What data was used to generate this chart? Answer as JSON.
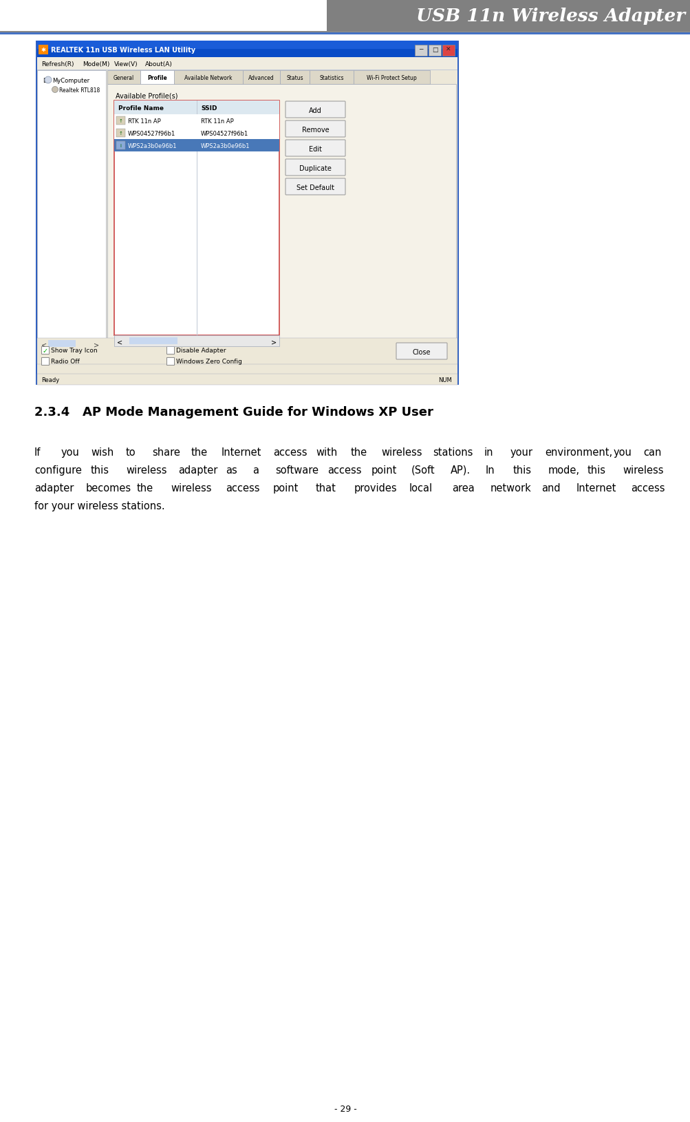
{
  "page_width": 10.04,
  "page_height": 16.31,
  "dpi": 100,
  "bg_color": "#ffffff",
  "header_bg": "#808080",
  "header_text": "USB 11n Wireless Adapter",
  "header_text_color": "#ffffff",
  "header_font_size": 19,
  "header_line_color": "#4472C4",
  "header_line_color2": "#888888",
  "footer_text": "- 29 -",
  "footer_font_size": 9,
  "section_title": "2.3.4   AP Mode Management Guide for Windows XP User",
  "section_title_font_size": 13,
  "body_text": "If you wish to share the Internet access with the wireless stations in your environment, you can configure this wireless adapter as a software access point (Soft AP). In this mode, this wireless adapter becomes the wireless access point that provides local area network and Internet access for your wireless stations.",
  "body_font_size": 10.5,
  "win_title": "REALTEK 11n USB Wireless LAN Utility",
  "win_title_bg": "#0a4cc7",
  "win_title_color": "#ffffff",
  "win_body_bg": "#ede8d8",
  "win_inner_bg": "#ffffff",
  "tab_active": "Profile",
  "tabs": [
    "General",
    "Profile",
    "Available Network",
    "Advanced",
    "Status",
    "Statistics",
    "Wi-Fi Protect Setup"
  ],
  "menu_items": [
    "Refresh(R)",
    "Mode(M)",
    "View(V)",
    "About(A)"
  ],
  "profile_label": "Available Profile(s)",
  "profile_cols": [
    "Profile Name",
    "SSID"
  ],
  "profile_rows": [
    [
      "RTK 11n AP",
      "RTK 11n AP"
    ],
    [
      "WPS04527f96b1",
      "WPS04527f96b1"
    ],
    [
      "WPS2a3b0e96b1",
      "WPS2a3b0e96b1"
    ]
  ],
  "selected_row": 2,
  "buttons": [
    "Add",
    "Remove",
    "Edit",
    "Duplicate",
    "Set Default"
  ],
  "bottom_checks": [
    "Show Tray Icon",
    "Radio Off"
  ],
  "bottom_checks2": [
    "Disable Adapter",
    "Windows Zero Config"
  ],
  "show_tray_checked": true,
  "close_btn": "Close",
  "status_bar": "Ready",
  "status_bar2": "NUM",
  "scrollbar_color": "#c8d8f0",
  "button_bg": "#f0f0f0",
  "button_border": "#a0a0a0",
  "selected_row_color": "#4878b8",
  "header_row_color": "#dce8f0",
  "win_border_color": "#3060c0",
  "win_border_color2": "#b0b8c8",
  "inner_border": "#a0a8b8",
  "tab_bg": "#ddd8c8",
  "tab_active_bg": "#ffffff",
  "check_color": "#00aa00",
  "table_border_color": "#cc4444",
  "sep_color": "#c0c8d8"
}
